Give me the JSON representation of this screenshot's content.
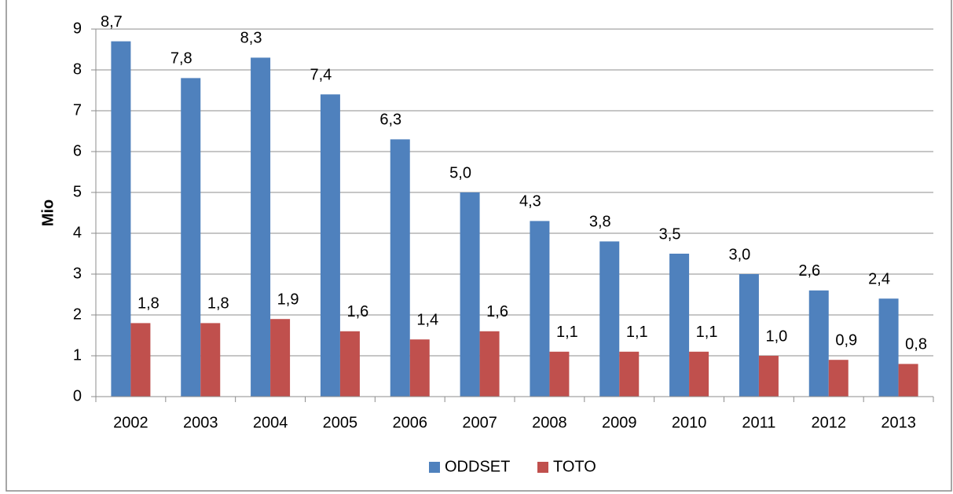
{
  "chart_data": {
    "type": "bar",
    "y_label": "Mio",
    "categories": [
      "2002",
      "2003",
      "2004",
      "2005",
      "2006",
      "2007",
      "2008",
      "2009",
      "2010",
      "2011",
      "2012",
      "2013"
    ],
    "series": [
      {
        "name": "ODDSET",
        "color": "#4f81bd",
        "values": [
          8.7,
          7.8,
          8.3,
          7.4,
          6.3,
          5.0,
          4.3,
          3.8,
          3.5,
          3.0,
          2.6,
          2.4
        ],
        "value_labels": [
          "8,7",
          "7,8",
          "8,3",
          "7,4",
          "6,3",
          "5,0",
          "4,3",
          "3,8",
          "3,5",
          "3,0",
          "2,6",
          "2,4"
        ]
      },
      {
        "name": "TOTO",
        "color": "#c0504d",
        "values": [
          1.8,
          1.8,
          1.9,
          1.6,
          1.4,
          1.6,
          1.1,
          1.1,
          1.1,
          1.0,
          0.9,
          0.8
        ],
        "value_labels": [
          "1,8",
          "1,8",
          "1,9",
          "1,6",
          "1,4",
          "1,6",
          "1,1",
          "1,1",
          "1,1",
          "1,0",
          "0,9",
          "0,8"
        ]
      }
    ],
    "ylim": [
      0,
      9
    ],
    "yticks": [
      0,
      1,
      2,
      3,
      4,
      5,
      6,
      7,
      8,
      9
    ],
    "grid": true,
    "legend": "bottom"
  }
}
